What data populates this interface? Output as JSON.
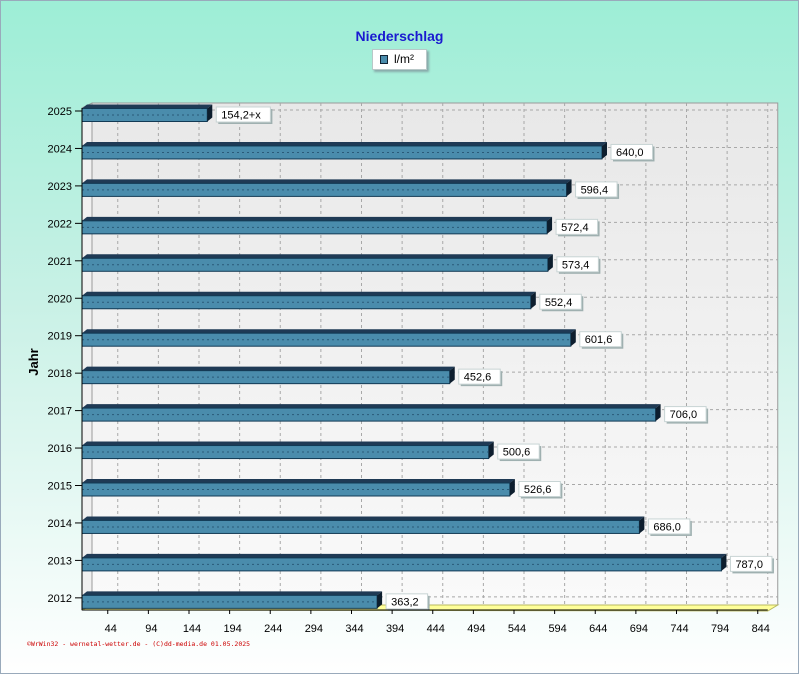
{
  "chart_data": {
    "type": "bar",
    "orientation": "horizontal",
    "title": "Niederschlag",
    "legend": [
      "l/m²"
    ],
    "ylabel": "Jahr",
    "categories": [
      "2025",
      "2024",
      "2023",
      "2022",
      "2021",
      "2020",
      "2019",
      "2018",
      "2017",
      "2016",
      "2015",
      "2014",
      "2013",
      "2012"
    ],
    "values": [
      154.2,
      640.0,
      596.4,
      572.4,
      573.4,
      552.4,
      601.6,
      452.6,
      706.0,
      500.6,
      526.6,
      686.0,
      787.0,
      363.2
    ],
    "value_labels": [
      "154,2+x",
      "640,0",
      "596,4",
      "572,4",
      "573,4",
      "552,4",
      "601,6",
      "452,6",
      "706,0",
      "500,6",
      "526,6",
      "686,0",
      "787,0",
      "363,2"
    ],
    "xticks": [
      44,
      94,
      144,
      194,
      244,
      294,
      344,
      394,
      444,
      494,
      544,
      594,
      644,
      694,
      744,
      794,
      844
    ],
    "xlim": [
      0,
      844
    ],
    "grid": true,
    "bar_color": "#4a8cac"
  },
  "footer": "©WrWin32 - wernetal-wetter.de - (C)dd-media.de  01.05.2025"
}
